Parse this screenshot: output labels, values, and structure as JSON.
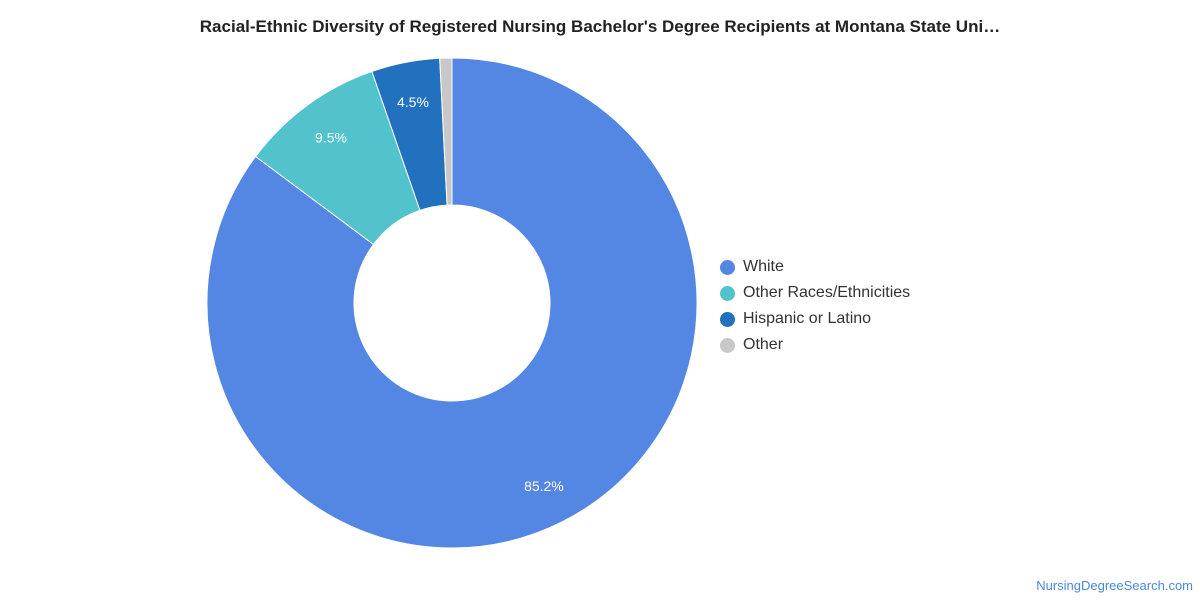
{
  "chart_data": {
    "type": "pie",
    "title": "Racial-Ethnic Diversity of Registered Nursing Bachelor's Degree Recipients at Montana State Uni…",
    "legend_position": "right",
    "slices": [
      {
        "label": "White",
        "value": 85.2,
        "display": "85.2%",
        "color": "#5486e3"
      },
      {
        "label": "Other Races/Ethnicities",
        "value": 9.5,
        "display": "9.5%",
        "color": "#52c3cd"
      },
      {
        "label": "Hispanic or Latino",
        "value": 4.5,
        "display": "4.5%",
        "color": "#2271bf"
      },
      {
        "label": "Other",
        "value": 0.8,
        "display": "",
        "color": "#c8c8c8"
      }
    ]
  },
  "source": "NursingDegreeSearch.com"
}
